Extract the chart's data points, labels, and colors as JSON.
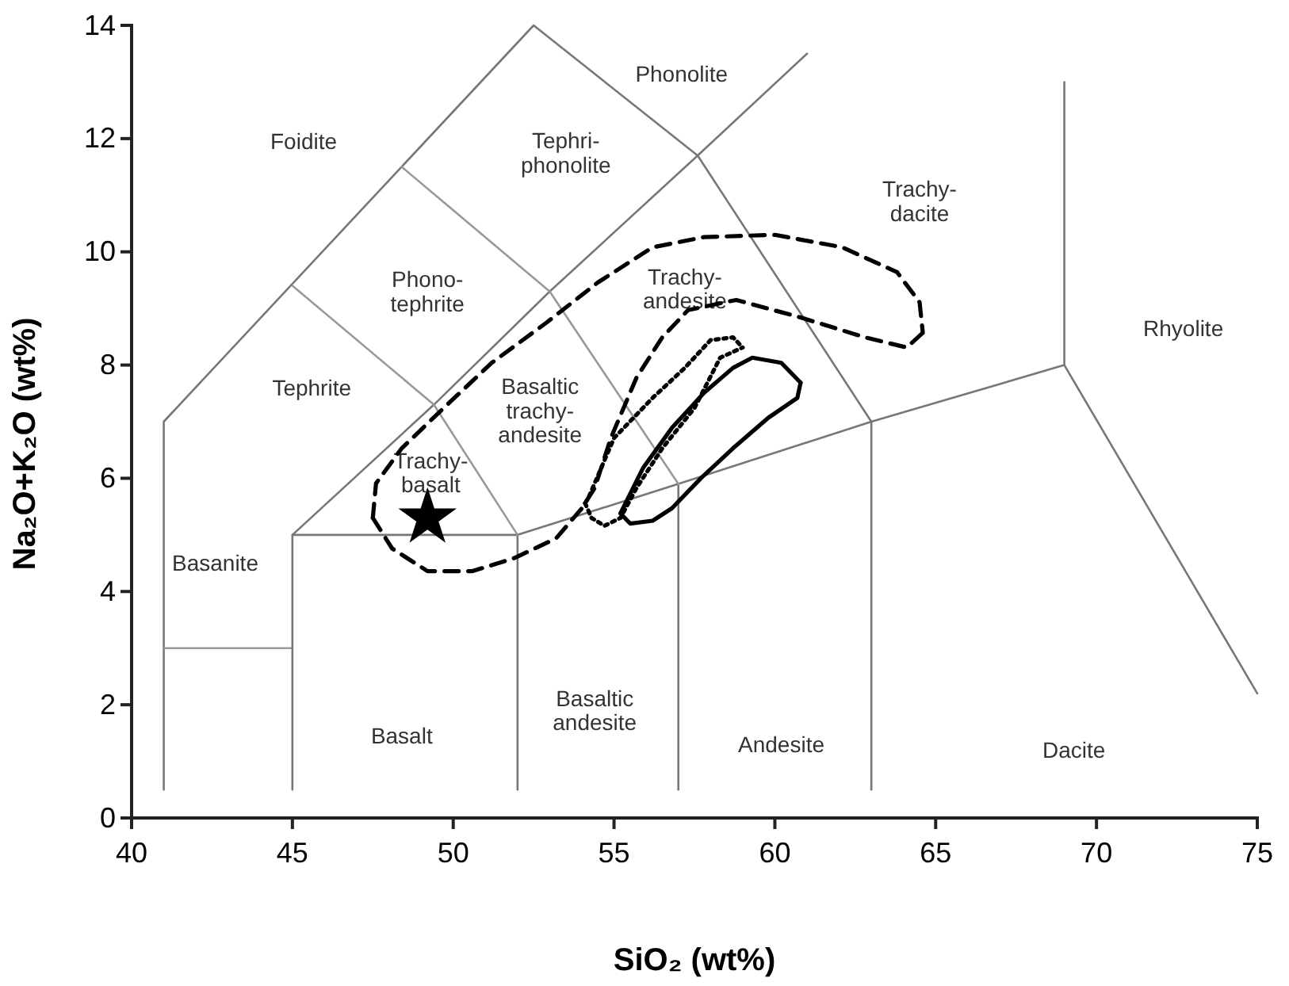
{
  "chart_data": {
    "type": "line",
    "xlabel": "SiO₂ (wt%)",
    "ylabel": "Na₂O+K₂O (wt%)",
    "xlim": [
      40,
      75
    ],
    "ylim": [
      0,
      14
    ],
    "xticks": [
      40,
      45,
      50,
      55,
      60,
      65,
      70,
      75
    ],
    "yticks": [
      0,
      2,
      4,
      6,
      8,
      10,
      12,
      14
    ],
    "marker": "none",
    "series": [
      {
        "color": "#777777",
        "x": [
          41,
          41,
          52.5,
          57.6,
          63
        ],
        "values": [
          0.5,
          7,
          14,
          11.7,
          7
        ]
      },
      {
        "color": "#999999",
        "x": [
          41,
          45
        ],
        "values": [
          3,
          3
        ]
      },
      {
        "color": "#777777",
        "x": [
          45,
          45,
          52,
          57,
          63,
          69,
          75
        ],
        "values": [
          0.5,
          5,
          5,
          5.9,
          7,
          8,
          2.2
        ]
      },
      {
        "color": "#777777",
        "x": [
          52,
          52
        ],
        "values": [
          0.5,
          5
        ]
      },
      {
        "color": "#777777",
        "x": [
          57,
          57
        ],
        "values": [
          0.5,
          5.9
        ]
      },
      {
        "color": "#777777",
        "x": [
          63,
          63
        ],
        "values": [
          0.5,
          7
        ]
      },
      {
        "color": "#777777",
        "x": [
          69,
          69
        ],
        "values": [
          8,
          13
        ]
      },
      {
        "color": "#777777",
        "x": [
          45,
          49.4,
          53,
          57.6,
          61
        ],
        "values": [
          5,
          7.3,
          9.3,
          11.7,
          13.5
        ]
      },
      {
        "color": "#999999",
        "x": [
          45,
          49.4,
          52
        ],
        "values": [
          9.4,
          7.3,
          5
        ]
      },
      {
        "color": "#999999",
        "x": [
          48.4,
          53,
          57
        ],
        "values": [
          11.5,
          9.3,
          5.9
        ]
      },
      {
        "color": "#000000",
        "line_style": "dashed",
        "x": [
          47.5,
          48.1,
          49.2,
          50.6,
          51.9,
          53.2,
          54.0,
          54.4,
          54.9,
          55.7,
          56.5,
          57.3,
          58.8,
          60.8,
          62.8,
          64.1,
          64.6
        ],
        "values": [
          5.3,
          4.76,
          4.36,
          4.36,
          4.59,
          4.94,
          5.47,
          5.83,
          6.71,
          7.78,
          8.49,
          8.97,
          9.15,
          8.84,
          8.49,
          8.31,
          8.57
        ]
      },
      {
        "color": "#000000",
        "line_style": "dashed",
        "x": [
          47.5,
          47.6,
          48.4,
          49.7,
          51.2,
          52.9,
          54.5,
          56.2,
          57.8,
          60.0,
          62.1,
          63.8,
          64.5,
          64.6
        ],
        "values": [
          5.3,
          5.91,
          6.53,
          7.24,
          8.04,
          8.75,
          9.46,
          10.08,
          10.26,
          10.3,
          10.08,
          9.64,
          9.11,
          8.57
        ]
      },
      {
        "color": "#000000",
        "line_style": "dotted",
        "x": [
          54.1,
          54.2,
          55.0,
          56.2,
          57.2,
          58.0,
          58.7,
          59.0
        ],
        "values": [
          5.56,
          5.65,
          6.71,
          7.42,
          7.95,
          8.44,
          8.49,
          8.31
        ]
      },
      {
        "color": "#000000",
        "line_style": "dotted",
        "x": [
          54.1,
          54.3,
          54.7,
          55.2,
          55.7,
          56.5,
          57.5,
          58.3,
          59.0
        ],
        "values": [
          5.56,
          5.3,
          5.16,
          5.3,
          5.83,
          6.53,
          7.24,
          8.13,
          8.31
        ]
      },
      {
        "color": "#000000",
        "line_style": "solid",
        "x": [
          55.2,
          55.9,
          56.8,
          57.8,
          58.7,
          59.3,
          60.2,
          60.8
        ],
        "values": [
          5.38,
          6.18,
          6.89,
          7.51,
          7.95,
          8.13,
          8.04,
          7.69
        ]
      },
      {
        "color": "#000000",
        "line_style": "solid",
        "x": [
          55.2,
          55.5,
          56.2,
          56.8,
          57.7,
          58.7,
          59.8,
          60.7,
          60.8
        ],
        "values": [
          5.38,
          5.2,
          5.25,
          5.47,
          6.0,
          6.53,
          7.07,
          7.42,
          7.69
        ]
      },
      {
        "type": "scatter",
        "marker": "star",
        "color": "#000000",
        "x": [
          49.2
        ],
        "values": [
          5.3
        ]
      }
    ],
    "annotations": [
      "Foidite",
      "Phonolite",
      "Tephri-\nphonolite",
      "Phono-\ntephrite",
      "Tephrite",
      "Trachy-\nbasalt",
      "Basaltic\ntrachy-\nandesite",
      "Trachy-\nandesite",
      "Trachy-\ndacite",
      "Rhyolite",
      "Basanite",
      "Basalt",
      "Basaltic\nandesite",
      "Andesite",
      "Dacite"
    ]
  }
}
